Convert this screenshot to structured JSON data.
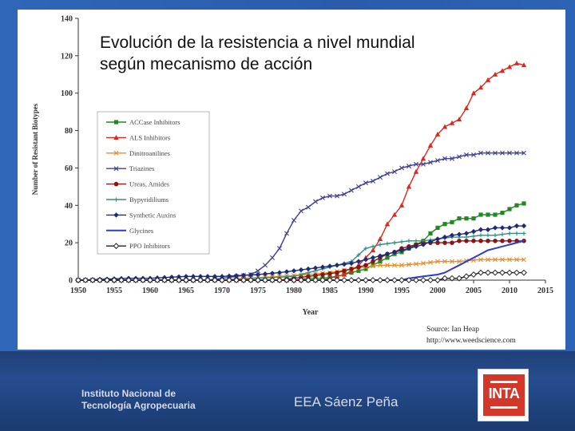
{
  "slide": {
    "title": "Evolución de la resistencia a nivel mundial\nsegún mecanismo de acción",
    "footer_org": "Instituto Nacional de\nTecnología Agropecuaria",
    "footer_station": "EEA Sáenz Peña",
    "logo_text": "INTA"
  },
  "chart_data": {
    "type": "line",
    "xlabel": "Year",
    "ylabel": "Number of Resistant Biotypes",
    "xlim": [
      1950,
      2015
    ],
    "ylim": [
      0,
      140
    ],
    "xticks": [
      1950,
      1955,
      1960,
      1965,
      1970,
      1975,
      1980,
      1985,
      1990,
      1995,
      2000,
      2005,
      2010,
      2015
    ],
    "yticks": [
      0,
      20,
      40,
      60,
      80,
      100,
      120,
      140
    ],
    "grid": false,
    "legend_position": "left",
    "source": [
      "Source: Ian Heap",
      "http://www.weedscience.com"
    ],
    "series": [
      {
        "name": "ACCase Inhibitors",
        "color": "#1f8a22",
        "marker": "square",
        "x": [
          1950,
          1960,
          1970,
          1980,
          1982,
          1984,
          1986,
          1987,
          1988,
          1989,
          1990,
          1991,
          1992,
          1993,
          1994,
          1995,
          1996,
          1997,
          1998,
          1999,
          2000,
          2001,
          2002,
          2003,
          2004,
          2005,
          2006,
          2007,
          2008,
          2009,
          2010,
          2011,
          2012
        ],
        "y": [
          0,
          0,
          0,
          0,
          1,
          1,
          2,
          3,
          4,
          5,
          6,
          8,
          10,
          12,
          14,
          15,
          17,
          19,
          21,
          25,
          28,
          30,
          31,
          33,
          33,
          33,
          35,
          35,
          35,
          36,
          38,
          40,
          41
        ]
      },
      {
        "name": "ALS Inhibitors",
        "color": "#e0261d",
        "marker": "triangle",
        "x": [
          1950,
          1960,
          1970,
          1980,
          1984,
          1986,
          1987,
          1988,
          1989,
          1990,
          1991,
          1992,
          1993,
          1994,
          1995,
          1996,
          1997,
          1998,
          1999,
          2000,
          2001,
          2002,
          2003,
          2004,
          2005,
          2006,
          2007,
          2008,
          2009,
          2010,
          2011,
          2012
        ],
        "y": [
          0,
          0,
          0,
          0,
          0,
          2,
          3,
          5,
          8,
          12,
          16,
          22,
          30,
          35,
          40,
          50,
          58,
          65,
          72,
          78,
          82,
          84,
          86,
          92,
          100,
          103,
          107,
          110,
          112,
          114,
          116,
          115
        ]
      },
      {
        "name": "Dinitroanilines",
        "color": "#f08a24",
        "marker": "x",
        "x": [
          1950,
          1960,
          1970,
          1973,
          1978,
          1982,
          1985,
          1988,
          1990,
          1992,
          1995,
          1998,
          2000,
          2003,
          2006,
          2009,
          2012
        ],
        "y": [
          0,
          0,
          0,
          1,
          2,
          3,
          4,
          6,
          7,
          8,
          8,
          9,
          10,
          10,
          11,
          11,
          11
        ]
      },
      {
        "name": "Triazines",
        "color": "#3b3f9a",
        "marker": "x",
        "x": [
          1950,
          1960,
          1968,
          1970,
          1972,
          1974,
          1975,
          1976,
          1977,
          1978,
          1979,
          1980,
          1981,
          1982,
          1983,
          1984,
          1985,
          1986,
          1987,
          1988,
          1989,
          1990,
          1991,
          1992,
          1993,
          1994,
          1995,
          1996,
          1997,
          1998,
          1999,
          2000,
          2001,
          2002,
          2003,
          2004,
          2005,
          2006,
          2007,
          2008,
          2009,
          2010,
          2011,
          2012
        ],
        "y": [
          0,
          0,
          0,
          1,
          2,
          3,
          5,
          8,
          12,
          17,
          25,
          32,
          37,
          39,
          42,
          44,
          45,
          45,
          46,
          48,
          50,
          52,
          53,
          55,
          57,
          58,
          60,
          61,
          62,
          62,
          63,
          64,
          65,
          65,
          66,
          67,
          67,
          68,
          68,
          68,
          68,
          68,
          68,
          68
        ]
      },
      {
        "name": "Ureas, Amides",
        "color": "#8b1414",
        "marker": "circle",
        "x": [
          1950,
          1960,
          1970,
          1978,
          1980,
          1982,
          1984,
          1986,
          1988,
          1990,
          1991,
          1992,
          1993,
          1994,
          1995,
          1996,
          1997,
          1998,
          1999,
          2000,
          2001,
          2002,
          2003,
          2004,
          2005,
          2006,
          2007,
          2008,
          2009,
          2010,
          2011,
          2012
        ],
        "y": [
          0,
          0,
          0,
          0,
          1,
          2,
          3,
          4,
          6,
          8,
          10,
          12,
          14,
          15,
          17,
          18,
          19,
          20,
          20,
          20,
          20,
          20,
          21,
          21,
          21,
          21,
          21,
          21,
          21,
          21,
          21,
          21
        ]
      },
      {
        "name": "Bypyridiliums",
        "color": "#2e8f7e",
        "marker": "plus",
        "x": [
          1950,
          1960,
          1970,
          1975,
          1980,
          1982,
          1984,
          1986,
          1988,
          1990,
          1992,
          1994,
          1996,
          1998,
          2000,
          2002,
          2004,
          2006,
          2008,
          2010,
          2012
        ],
        "y": [
          0,
          0,
          0,
          1,
          2,
          4,
          6,
          8,
          10,
          17,
          19,
          20,
          21,
          21,
          22,
          23,
          23,
          24,
          24,
          25,
          25
        ]
      },
      {
        "name": "Synthetic Auxins",
        "color": "#1e2a7a",
        "marker": "diamond",
        "x": [
          1950,
          1957,
          1960,
          1965,
          1970,
          1975,
          1978,
          1980,
          1982,
          1984,
          1986,
          1988,
          1990,
          1992,
          1994,
          1996,
          1998,
          2000,
          2002,
          2004,
          2005,
          2006,
          2007,
          2008,
          2009,
          2010,
          2011,
          2012
        ],
        "y": [
          0,
          1,
          1,
          2,
          2,
          3,
          4,
          5,
          6,
          7,
          8,
          9,
          11,
          13,
          15,
          17,
          19,
          22,
          24,
          25,
          26,
          27,
          27,
          28,
          28,
          28,
          29,
          29
        ]
      },
      {
        "name": "Glycines",
        "color": "#2a3bd6",
        "marker": "none",
        "x": [
          1950,
          1960,
          1970,
          1980,
          1990,
          1995,
          1996,
          1998,
          2000,
          2001,
          2002,
          2003,
          2004,
          2005,
          2006,
          2007,
          2008,
          2009,
          2010,
          2011,
          2012
        ],
        "y": [
          0,
          0,
          0,
          0,
          0,
          0,
          1,
          2,
          3,
          4,
          6,
          8,
          10,
          12,
          14,
          16,
          17,
          18,
          19,
          20,
          21
        ]
      },
      {
        "name": "PPO Inhibitors",
        "color": "#222222",
        "marker": "diamond-open",
        "x": [
          1950,
          1960,
          1970,
          1980,
          1990,
          2000,
          2001,
          2002,
          2003,
          2004,
          2005,
          2006,
          2007,
          2008,
          2009,
          2010,
          2011,
          2012
        ],
        "y": [
          0,
          0,
          0,
          0,
          0,
          0,
          1,
          1,
          1,
          2,
          3,
          4,
          4,
          4,
          4,
          4,
          4,
          4
        ]
      }
    ]
  }
}
